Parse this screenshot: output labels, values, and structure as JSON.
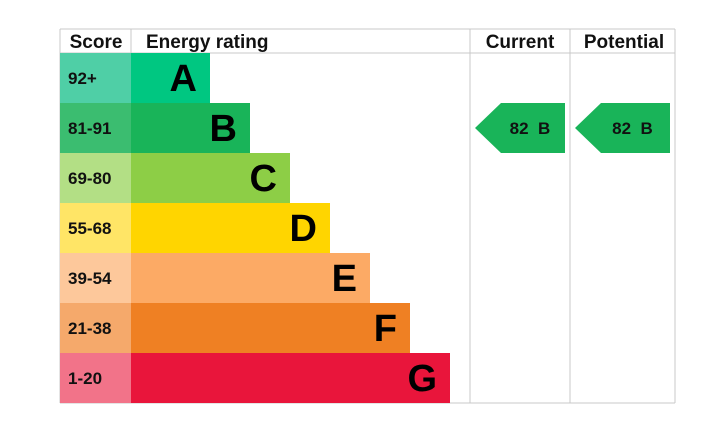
{
  "chart_data": {
    "type": "table",
    "headers": {
      "score": "Score",
      "rating": "Energy rating",
      "current": "Current",
      "potential": "Potential"
    },
    "bands": [
      {
        "score": "92+",
        "letter": "A",
        "color": "#00c781",
        "score_bg": "#4fcfa6"
      },
      {
        "score": "81-91",
        "letter": "B",
        "color": "#19b459",
        "score_bg": "#3bbd70"
      },
      {
        "score": "69-80",
        "letter": "C",
        "color": "#8dce46",
        "score_bg": "#b3df85"
      },
      {
        "score": "55-68",
        "letter": "D",
        "color": "#ffd500",
        "score_bg": "#ffe566"
      },
      {
        "score": "39-54",
        "letter": "E",
        "color": "#fcaa65",
        "score_bg": "#fdc89b"
      },
      {
        "score": "21-38",
        "letter": "F",
        "color": "#ef8023",
        "score_bg": "#f5a96b"
      },
      {
        "score": "1-20",
        "letter": "G",
        "color": "#e9153b",
        "score_bg": "#f27389"
      }
    ],
    "current": {
      "value": 82,
      "letter": "B",
      "label": "82  B",
      "color": "#19b459"
    },
    "potential": {
      "value": 82,
      "letter": "B",
      "label": "82  B",
      "color": "#19b459"
    },
    "grid_color": "#c8c8c8"
  }
}
